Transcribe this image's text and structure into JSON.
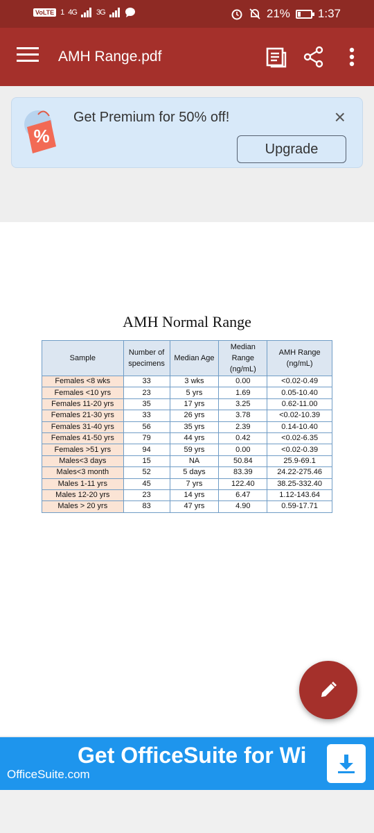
{
  "status_bar": {
    "volte": "VoLTE",
    "sim": "1",
    "network1": "4G",
    "network2": "3G",
    "battery_percent": "21%",
    "battery_level": 0.21,
    "time": "1:37"
  },
  "app_bar": {
    "title": "AMH Range.pdf"
  },
  "promo": {
    "icon_symbol": "%",
    "text": "Get Premium for 50% off!",
    "close": "×",
    "button": "Upgrade"
  },
  "document": {
    "title": "AMH Normal Range",
    "headers": [
      "Sample",
      "Number of specimens",
      "Median Age",
      "Median Range (ng/mL)",
      "AMH Range (ng/mL)"
    ],
    "rows": [
      [
        "Females <8 wks",
        "33",
        "3 wks",
        "0.00",
        "<0.02-0.49"
      ],
      [
        "Females <10 yrs",
        "23",
        "5 yrs",
        "1.69",
        "0.05-10.40"
      ],
      [
        "Females  11-20 yrs",
        "35",
        "17 yrs",
        "3.25",
        "0.62-11.00"
      ],
      [
        "Females 21-30 yrs",
        "33",
        "26 yrs",
        "3.78",
        "<0.02-10.39"
      ],
      [
        "Females 31-40 yrs",
        "56",
        "35 yrs",
        "2.39",
        "0.14-10.40"
      ],
      [
        "Females  41-50 yrs",
        "79",
        "44 yrs",
        "0.42",
        "<0.02-6.35"
      ],
      [
        "Females >51 yrs",
        "94",
        "59 yrs",
        "0.00",
        "<0.02-0.39"
      ],
      [
        "Males<3 days",
        "15",
        "NA",
        "50.84",
        "25.9-69.1"
      ],
      [
        "Males<3 month",
        "52",
        "5 days",
        "83.39",
        "24.22-275.46"
      ],
      [
        "Males 1-11 yrs",
        "45",
        "7 yrs",
        "122.40",
        "38.25-332.40"
      ],
      [
        "Males 12-20 yrs",
        "23",
        "14 yrs",
        "6.47",
        "1.12-143.64"
      ],
      [
        "Males > 20 yrs",
        "83",
        "47 yrs",
        "4.90",
        "0.59-17.71"
      ]
    ]
  },
  "ad": {
    "headline": "Get OfficeSuite for Wi",
    "subtext": "OfficeSuite.com"
  },
  "colors": {
    "status_bar": "#8e2a24",
    "app_bar": "#a5302b",
    "banner_bg": "#d8e9f9",
    "ad_bg": "#1e95ed",
    "fab": "#a5302b"
  },
  "icons": {
    "menu": "menu-icon",
    "reader": "reading-mode-icon",
    "share": "share-icon",
    "more": "more-vert-icon",
    "edit": "pencil-icon",
    "download": "download-icon"
  }
}
